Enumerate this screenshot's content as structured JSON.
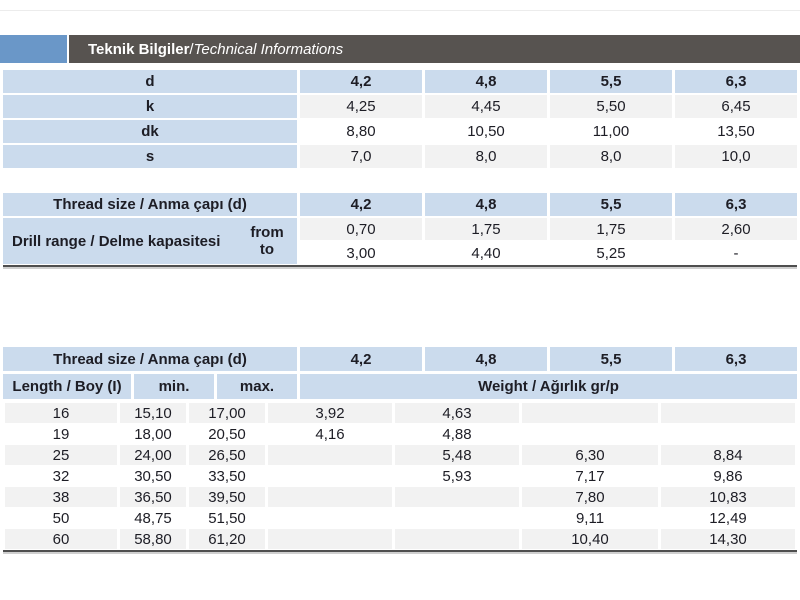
{
  "header": {
    "title_bold": "Teknik Bilgiler",
    "title_separator": " / ",
    "title_italic": "Technical Informations"
  },
  "colors": {
    "accent_blue": "#6a97c8",
    "cell_blue": "#cbdbed",
    "stripe_gray": "#f2f2f2",
    "row_white": "#ffffff",
    "bar_gray": "#575350",
    "rule_dark": "#4e4e4e",
    "rule_light": "#cfcfcf"
  },
  "table1": {
    "rows": [
      {
        "label": "d",
        "values": [
          "4,2",
          "4,8",
          "5,5",
          "6,3"
        ]
      },
      {
        "label": "k",
        "values": [
          "4,25",
          "4,45",
          "5,50",
          "6,45"
        ]
      },
      {
        "label": "dk",
        "values": [
          "8,80",
          "10,50",
          "11,00",
          "13,50"
        ]
      },
      {
        "label": "s",
        "values": [
          "7,0",
          "8,0",
          "8,0",
          "10,0"
        ]
      }
    ]
  },
  "table2": {
    "header_label": "Thread size / Anma çapı (d)",
    "header_values": [
      "4,2",
      "4,8",
      "5,5",
      "6,3"
    ],
    "drill_label": "Drill range / Delme kapasitesi",
    "from_label": "from",
    "to_label": "to",
    "from_values": [
      "0,70",
      "1,75",
      "1,75",
      "2,60"
    ],
    "to_values": [
      "3,00",
      "4,40",
      "5,25",
      "-"
    ]
  },
  "table3": {
    "header_label": "Thread size / Anma çapı (d)",
    "header_values": [
      "4,2",
      "4,8",
      "5,5",
      "6,3"
    ],
    "length_label": "Length / Boy (I)",
    "min_label": "min.",
    "max_label": "max.",
    "weight_label": "Weight / Ağırlık gr/p",
    "rows": [
      {
        "length": "16",
        "min": "15,10",
        "max": "17,00",
        "weights": [
          "3,92",
          "4,63",
          "",
          ""
        ]
      },
      {
        "length": "19",
        "min": "18,00",
        "max": "20,50",
        "weights": [
          "4,16",
          "4,88",
          "",
          ""
        ]
      },
      {
        "length": "25",
        "min": "24,00",
        "max": "26,50",
        "weights": [
          "",
          "5,48",
          "6,30",
          "8,84"
        ]
      },
      {
        "length": "32",
        "min": "30,50",
        "max": "33,50",
        "weights": [
          "",
          "5,93",
          "7,17",
          "9,86"
        ]
      },
      {
        "length": "38",
        "min": "36,50",
        "max": "39,50",
        "weights": [
          "",
          "",
          "7,80",
          "10,83"
        ]
      },
      {
        "length": "50",
        "min": "48,75",
        "max": "51,50",
        "weights": [
          "",
          "",
          "9,11",
          "12,49"
        ]
      },
      {
        "length": "60",
        "min": "58,80",
        "max": "61,20",
        "weights": [
          "",
          "",
          "10,40",
          "14,30"
        ]
      }
    ]
  }
}
